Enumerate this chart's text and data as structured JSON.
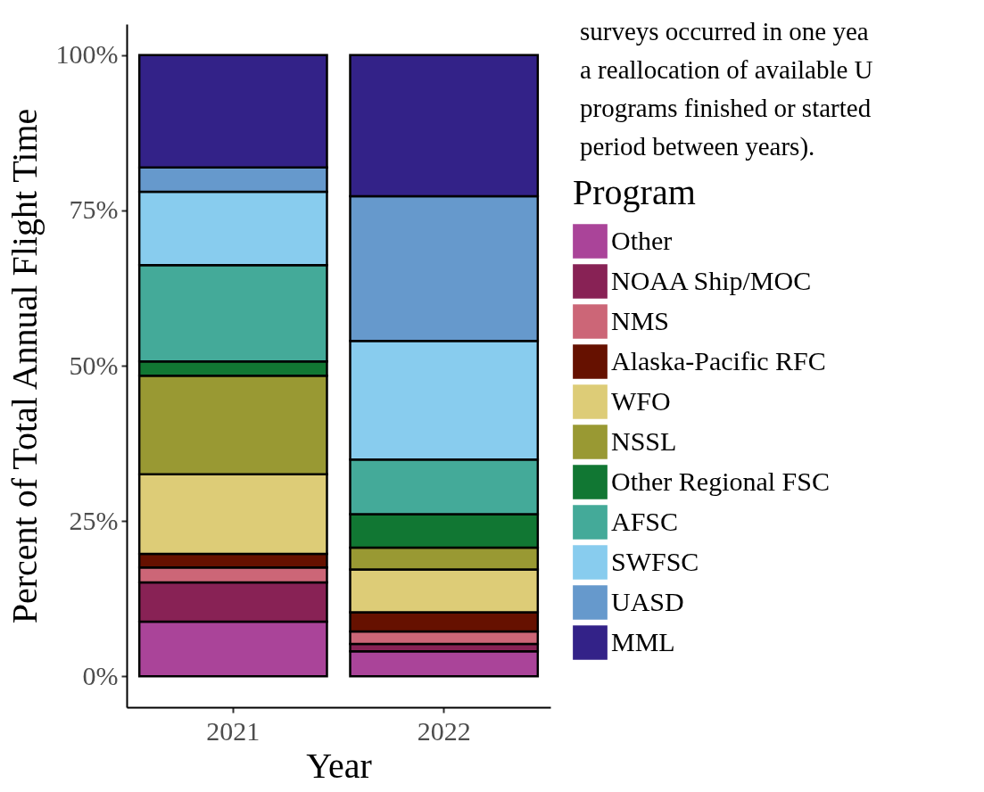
{
  "chart_data": {
    "type": "bar",
    "stacked": true,
    "xlabel": "Year",
    "ylabel": "Percent of Total Annual Flight Time",
    "legend_title": "Program",
    "legend": "right",
    "categories": [
      "2021",
      "2022"
    ],
    "series": [
      {
        "name": "Other",
        "color": "#aa4499",
        "values": [
          8.8,
          4.0
        ]
      },
      {
        "name": "NOAA Ship/MOC",
        "color": "#882255",
        "values": [
          6.3,
          1.2
        ]
      },
      {
        "name": "NMS",
        "color": "#cc6677",
        "values": [
          2.4,
          2.0
        ]
      },
      {
        "name": "Alaska-Pacific RFC",
        "color": "#661100",
        "values": [
          2.2,
          3.1
        ]
      },
      {
        "name": "WFO",
        "color": "#ddcc77",
        "values": [
          12.8,
          6.9
        ]
      },
      {
        "name": "NSSL",
        "color": "#999933",
        "values": [
          15.9,
          3.5
        ]
      },
      {
        "name": "Other Regional FSC",
        "color": "#117733",
        "values": [
          2.3,
          5.4
        ]
      },
      {
        "name": "AFSC",
        "color": "#44aa99",
        "values": [
          15.5,
          8.8
        ]
      },
      {
        "name": "SWFSC",
        "color": "#88ccee",
        "values": [
          11.8,
          19.1
        ]
      },
      {
        "name": "UASD",
        "color": "#6699cc",
        "values": [
          3.9,
          23.3
        ]
      },
      {
        "name": "MML",
        "color": "#332288",
        "values": [
          18.1,
          22.7
        ]
      }
    ],
    "ylim": [
      -5,
      105
    ],
    "yticks": [
      {
        "value": 0,
        "label": "0%"
      },
      {
        "value": 25,
        "label": "25%"
      },
      {
        "value": 50,
        "label": "50%"
      },
      {
        "value": 75,
        "label": "75%"
      },
      {
        "value": 100,
        "label": "100%"
      }
    ],
    "grid": false,
    "annotations": [
      "surveys occurred in one yea",
      "a reallocation of available U",
      "programs finished or started",
      "period between years)."
    ]
  }
}
